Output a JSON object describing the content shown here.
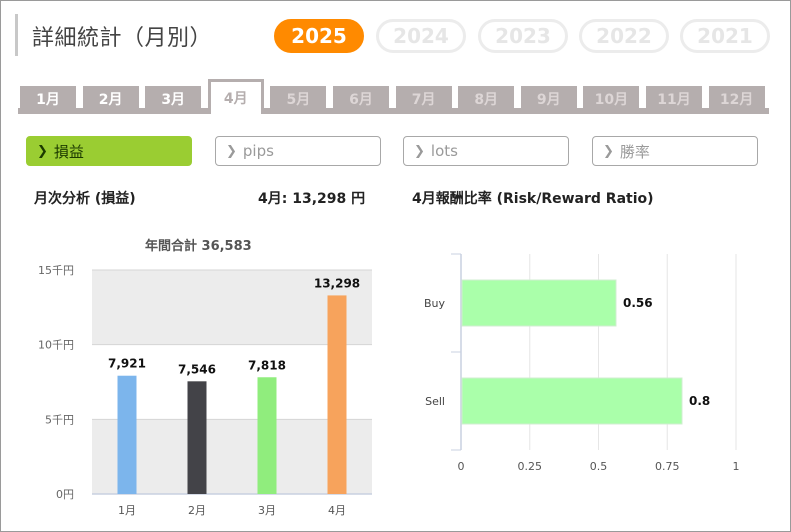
{
  "header": {
    "title": "詳細統計（月別）"
  },
  "years": [
    {
      "label": "2025",
      "active": true
    },
    {
      "label": "2024",
      "active": false
    },
    {
      "label": "2023",
      "active": false
    },
    {
      "label": "2022",
      "active": false
    },
    {
      "label": "2021",
      "active": false
    }
  ],
  "months": [
    "1月",
    "2月",
    "3月",
    "4月",
    "5月",
    "6月",
    "7月",
    "8月",
    "9月",
    "10月",
    "11月",
    "12月"
  ],
  "selected_month_index": 3,
  "metrics": [
    {
      "label": "損益",
      "active": true
    },
    {
      "label": "pips",
      "active": false
    },
    {
      "label": "lots",
      "active": false
    },
    {
      "label": "勝率",
      "active": false
    }
  ],
  "monthly": {
    "heading": "月次分析 (損益)",
    "month_value": "4月:  13,298 円",
    "annual_total": "年間合計 36,583"
  },
  "ratio": {
    "heading": "4月報酬比率 (Risk/Reward Ratio)"
  },
  "chart_data": [
    {
      "type": "bar",
      "categories": [
        "1月",
        "2月",
        "3月",
        "4月"
      ],
      "values": [
        7921,
        7546,
        7818,
        13298
      ],
      "data_labels": [
        "7,921",
        "7,546",
        "7,818",
        "13,298"
      ],
      "colors": [
        "#7cb5ec",
        "#434348",
        "#90ed7d",
        "#f7a35c"
      ],
      "ylim": [
        0,
        15000
      ],
      "ytick_values": [
        0,
        5000,
        10000,
        15000
      ],
      "ytick_labels": [
        "0円",
        "5千円",
        "10千円",
        "15千円"
      ],
      "grid": true
    },
    {
      "type": "bar",
      "orientation": "horizontal",
      "categories": [
        "Buy",
        "Sell"
      ],
      "values": [
        0.56,
        0.8
      ],
      "data_labels": [
        "0.56",
        "0.8"
      ],
      "color": "#aaffaa",
      "xlim": [
        0,
        1
      ],
      "xtick_values": [
        0,
        0.25,
        0.5,
        0.75,
        1
      ],
      "xtick_labels": [
        "0",
        "0.25",
        "0.5",
        "0.75",
        "1"
      ],
      "grid": true
    }
  ]
}
